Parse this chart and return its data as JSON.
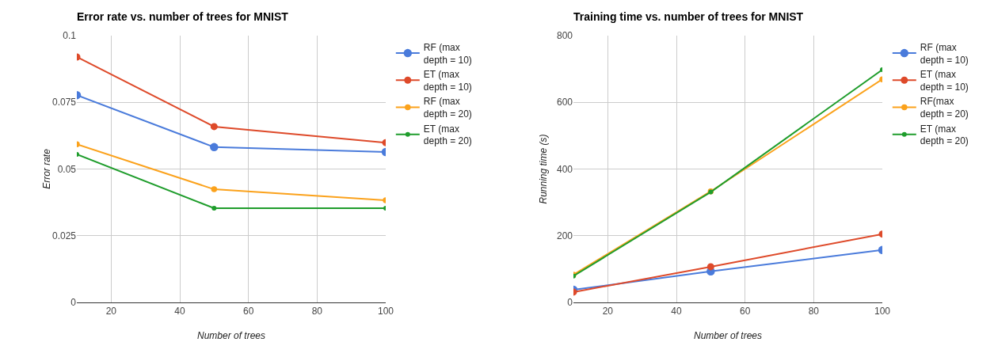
{
  "chart_data": [
    {
      "type": "line",
      "title": "Error rate vs. number of trees for MNIST",
      "xlabel": "Number of trees",
      "ylabel": "Error rate",
      "x": [
        10,
        50,
        100
      ],
      "xlim": [
        10,
        100
      ],
      "xticks": [
        20,
        40,
        60,
        80,
        100
      ],
      "ylim": [
        0,
        0.1
      ],
      "yticks": [
        0,
        0.025,
        0.05,
        0.075,
        0.1
      ],
      "grid": true,
      "legend": "right",
      "marker": "circle",
      "line_style": "solid",
      "series": [
        {
          "name": "RF (max depth = 10)",
          "color": "#4a7bdb",
          "values": [
            0.0777,
            0.0582,
            0.0564
          ]
        },
        {
          "name": "ET (max depth = 10)",
          "color": "#de4a2a",
          "values": [
            0.092,
            0.0659,
            0.0599
          ]
        },
        {
          "name": "RF (max depth = 20)",
          "color": "#fba21c",
          "values": [
            0.0593,
            0.0424,
            0.0383
          ]
        },
        {
          "name": "ET (max depth = 20)",
          "color": "#1f9d2c",
          "values": [
            0.0555,
            0.0353,
            0.0353
          ]
        }
      ]
    },
    {
      "type": "line",
      "title": "Training time vs. number of trees for MNIST",
      "xlabel": "Number of trees",
      "ylabel": "Running time (s)",
      "x": [
        10,
        50,
        100
      ],
      "xlim": [
        10,
        100
      ],
      "xticks": [
        20,
        40,
        60,
        80,
        100
      ],
      "ylim": [
        0,
        800
      ],
      "yticks": [
        0,
        200,
        400,
        600,
        800
      ],
      "grid": true,
      "legend": "right",
      "marker": "circle",
      "line_style": "solid",
      "series": [
        {
          "name": "RF (max depth = 10)",
          "color": "#4a7bdb",
          "values": [
            38,
            93,
            157
          ]
        },
        {
          "name": "ET (max depth = 10)",
          "color": "#de4a2a",
          "values": [
            31,
            107,
            205
          ]
        },
        {
          "name": "RF(max depth = 20)",
          "color": "#fba21c",
          "values": [
            83,
            333,
            669
          ]
        },
        {
          "name": "ET (max depth = 20)",
          "color": "#1f9d2c",
          "values": [
            79,
            331,
            698
          ]
        }
      ]
    }
  ]
}
